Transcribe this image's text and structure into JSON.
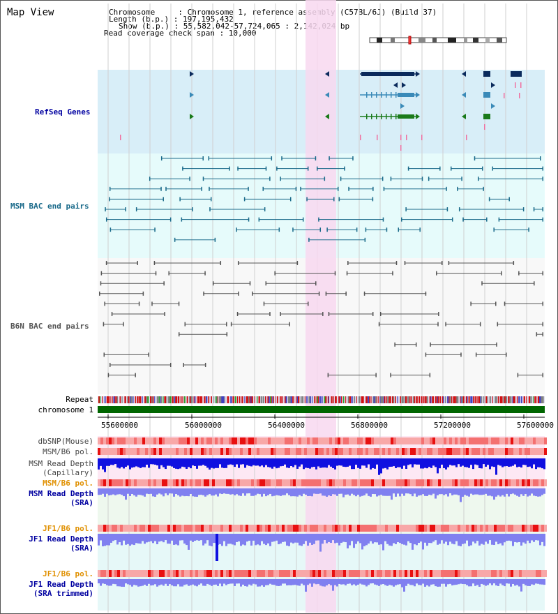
{
  "window": {
    "title": "Map View"
  },
  "info": {
    "chromosome": "Chromosome     : Chromosome 1, reference assembly (C57BL/6J) (Build 37)",
    "length": "Length (b.p.) : 197,195,432",
    "show": "Show (b.p.) : 55,582,042-57,724,065 : 2,142,024 bp",
    "coverage": "Read coverage check span : 10,000"
  },
  "tracks": {
    "refseq": "RefSeq Genes",
    "msm_bac": "MSM BAC end pairs",
    "b6n_bac": "B6N BAC end pairs",
    "repeat": "Repeat",
    "chromosome": "chromosome 1",
    "dbsnp": "dbSNP(Mouse)",
    "msm_pol": "MSM/B6 pol.",
    "msm_depth_cap_1": "MSM Read Depth",
    "msm_depth_cap_2": "(Capillary)",
    "msm_pol_2": "MSM/B6 pol.",
    "msm_depth_sra_1": "MSM Read Depth",
    "msm_depth_sra_2": "(SRA)",
    "jf1_pol": "JF1/B6 pol.",
    "jf1_depth_1": "JF1 Read Depth",
    "jf1_depth_2": "(SRA)",
    "jf1_pol_2": "JF1/B6 pol.",
    "jf1_trim_1": "JF1 Read Depth",
    "jf1_trim_2": "(SRA trimmed)"
  },
  "axis": {
    "ticks": [
      "55600000",
      "56000000",
      "56400000",
      "56800000",
      "57200000",
      "57600000"
    ]
  },
  "colors": {
    "highlight": "#f8d8f0",
    "refseq_bg": "#d8eef8",
    "msm_bg": "#e6fbfb",
    "refseq_dark": "#0a2a5c",
    "refseq_mid": "#3a8ab8",
    "refseq_green": "#1a7a1a",
    "msm_line": "#1a6a8a",
    "b6n_line": "#555555",
    "depth_blue": "#1010e0",
    "depth_light": "#8080f0",
    "label_blue": "#0000a0",
    "label_orange": "#e09000",
    "chrom_green": "#006600"
  }
}
